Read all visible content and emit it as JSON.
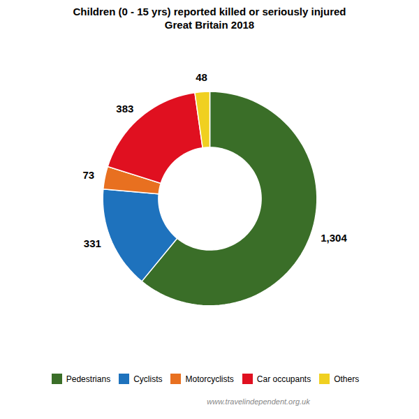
{
  "chart_data": {
    "type": "donut",
    "title": "Children (0 - 15 yrs) reported killed or seriously injured",
    "subtitle": "Great Britain 2018",
    "categories": [
      "Pedestrians",
      "Cyclists",
      "Motorcyclists",
      "Car occupants",
      "Others"
    ],
    "values": [
      1304,
      331,
      73,
      383,
      48
    ],
    "value_labels": [
      "1,304",
      "331",
      "73",
      "383",
      "48"
    ],
    "colors": [
      "#3a6e28",
      "#1e72bd",
      "#e87020",
      "#e01020",
      "#f0d020"
    ],
    "data_labels": true,
    "legend": "bottom",
    "annotations": [
      "www.travelindependent.org.uk"
    ]
  }
}
